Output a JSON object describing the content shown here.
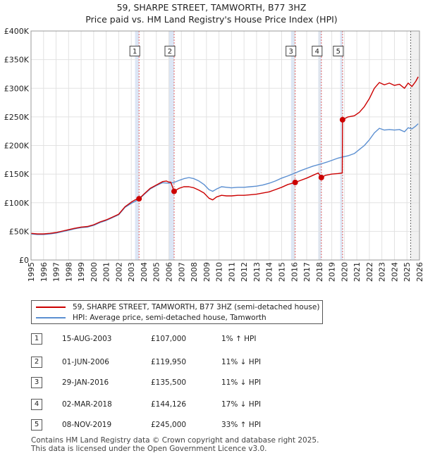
{
  "chart_data": {
    "type": "line",
    "title": "59, SHARPE STREET, TAMWORTH, B77 3HZ",
    "subtitle": "Price paid vs. HM Land Registry's House Price Index (HPI)",
    "xlim": [
      1995,
      2026
    ],
    "ylim": [
      0,
      400000
    ],
    "y_ticks": [
      0,
      50000,
      100000,
      150000,
      200000,
      250000,
      300000,
      350000,
      400000
    ],
    "y_tick_labels": [
      "£0",
      "£50K",
      "£100K",
      "£150K",
      "£200K",
      "£250K",
      "£300K",
      "£350K",
      "£400K"
    ],
    "x_ticks": [
      1995,
      1996,
      1997,
      1998,
      1999,
      2000,
      2001,
      2002,
      2003,
      2004,
      2005,
      2006,
      2007,
      2008,
      2009,
      2010,
      2011,
      2012,
      2013,
      2014,
      2015,
      2016,
      2017,
      2018,
      2019,
      2020,
      2021,
      2022,
      2023,
      2024,
      2025,
      2026
    ],
    "x_tick_labels": [
      "1995",
      "1996",
      "1997",
      "1998",
      "1999",
      "2000",
      "2001",
      "2002",
      "2003",
      "2004",
      "2005",
      "2006",
      "2007",
      "2008",
      "2009",
      "2010",
      "2011",
      "2012",
      "2013",
      "2014",
      "2015",
      "2016",
      "2017",
      "2018",
      "2019",
      "2020",
      "2021",
      "2022",
      "2023",
      "2024",
      "2025",
      "2026"
    ],
    "grid": true,
    "colors": {
      "property": "#cc0000",
      "hpi": "#5b8fd1",
      "shade": "#dce6f5",
      "grid": "#e2e2e2",
      "vline": "#e06060",
      "forecast": "#aaaaaa"
    },
    "shaded_bands": [
      [
        2003.3,
        2003.62
      ],
      [
        2006.0,
        2006.42
      ],
      [
        2015.75,
        2016.08
      ],
      [
        2017.92,
        2018.17
      ],
      [
        2019.67,
        2019.86
      ]
    ],
    "forecast_start": 2025.3,
    "series": [
      {
        "name": "59, SHARPE STREET, TAMWORTH, B77 3HZ (semi-detached house)",
        "color": "#cc0000",
        "points": [
          [
            1995.0,
            46500
          ],
          [
            1995.5,
            45500
          ],
          [
            1996.0,
            45500
          ],
          [
            1996.5,
            46500
          ],
          [
            1997.0,
            48000
          ],
          [
            1997.5,
            50500
          ],
          [
            1998.0,
            53000
          ],
          [
            1998.5,
            55500
          ],
          [
            1999.0,
            57500
          ],
          [
            1999.5,
            58500
          ],
          [
            2000.0,
            61500
          ],
          [
            2000.5,
            66500
          ],
          [
            2001.0,
            70000
          ],
          [
            2001.5,
            75000
          ],
          [
            2002.0,
            80000
          ],
          [
            2002.5,
            93000
          ],
          [
            2003.0,
            101000
          ],
          [
            2003.3,
            105000
          ],
          [
            2003.62,
            107000
          ],
          [
            2004.0,
            115000
          ],
          [
            2004.5,
            125000
          ],
          [
            2005.0,
            131000
          ],
          [
            2005.5,
            137000
          ],
          [
            2005.8,
            138000
          ],
          [
            2006.0,
            136000
          ],
          [
            2006.15,
            136000
          ],
          [
            2006.42,
            119950
          ],
          [
            2006.8,
            125000
          ],
          [
            2007.2,
            128000
          ],
          [
            2007.6,
            128000
          ],
          [
            2008.0,
            126000
          ],
          [
            2008.4,
            122000
          ],
          [
            2008.8,
            117000
          ],
          [
            2009.2,
            108000
          ],
          [
            2009.5,
            105000
          ],
          [
            2009.8,
            110000
          ],
          [
            2010.2,
            113000
          ],
          [
            2010.6,
            112000
          ],
          [
            2011.0,
            112000
          ],
          [
            2011.5,
            113000
          ],
          [
            2012.0,
            113000
          ],
          [
            2012.5,
            114000
          ],
          [
            2013.0,
            115000
          ],
          [
            2013.5,
            117000
          ],
          [
            2014.0,
            119000
          ],
          [
            2014.5,
            123000
          ],
          [
            2015.0,
            127000
          ],
          [
            2015.5,
            132000
          ],
          [
            2016.08,
            135500
          ],
          [
            2016.5,
            139000
          ],
          [
            2017.0,
            143000
          ],
          [
            2017.5,
            148000
          ],
          [
            2017.92,
            152000
          ],
          [
            2018.17,
            144126
          ],
          [
            2018.5,
            148000
          ],
          [
            2019.0,
            150000
          ],
          [
            2019.5,
            151000
          ],
          [
            2019.84,
            152000
          ],
          [
            2019.86,
            245000
          ],
          [
            2020.3,
            250000
          ],
          [
            2020.8,
            252000
          ],
          [
            2021.2,
            258000
          ],
          [
            2021.6,
            268000
          ],
          [
            2022.0,
            282000
          ],
          [
            2022.4,
            300000
          ],
          [
            2022.8,
            310000
          ],
          [
            2023.2,
            306000
          ],
          [
            2023.6,
            309000
          ],
          [
            2024.0,
            305000
          ],
          [
            2024.4,
            307000
          ],
          [
            2024.8,
            300000
          ],
          [
            2025.1,
            309000
          ],
          [
            2025.4,
            303000
          ],
          [
            2025.7,
            312000
          ],
          [
            2025.9,
            320000
          ]
        ]
      },
      {
        "name": "HPI: Average price, semi-detached house, Tamworth",
        "color": "#5b8fd1",
        "points": [
          [
            1995.0,
            45500
          ],
          [
            1995.5,
            44500
          ],
          [
            1996.0,
            44500
          ],
          [
            1996.5,
            45500
          ],
          [
            1997.0,
            47000
          ],
          [
            1997.5,
            49500
          ],
          [
            1998.0,
            52000
          ],
          [
            1998.5,
            54500
          ],
          [
            1999.0,
            56500
          ],
          [
            1999.5,
            57500
          ],
          [
            2000.0,
            60500
          ],
          [
            2000.5,
            65500
          ],
          [
            2001.0,
            69000
          ],
          [
            2001.5,
            74000
          ],
          [
            2002.0,
            79000
          ],
          [
            2002.5,
            92000
          ],
          [
            2003.0,
            99000
          ],
          [
            2003.62,
            106000
          ],
          [
            2004.0,
            114000
          ],
          [
            2004.5,
            124000
          ],
          [
            2005.0,
            130000
          ],
          [
            2005.5,
            135000
          ],
          [
            2006.0,
            134000
          ],
          [
            2006.42,
            135500
          ],
          [
            2006.8,
            139000
          ],
          [
            2007.2,
            142000
          ],
          [
            2007.6,
            144000
          ],
          [
            2008.0,
            142000
          ],
          [
            2008.4,
            138000
          ],
          [
            2008.8,
            132000
          ],
          [
            2009.2,
            123000
          ],
          [
            2009.5,
            120000
          ],
          [
            2009.8,
            124000
          ],
          [
            2010.2,
            128000
          ],
          [
            2010.6,
            127000
          ],
          [
            2011.0,
            126000
          ],
          [
            2011.5,
            127000
          ],
          [
            2012.0,
            127000
          ],
          [
            2012.5,
            128000
          ],
          [
            2013.0,
            129000
          ],
          [
            2013.5,
            131000
          ],
          [
            2014.0,
            134000
          ],
          [
            2014.5,
            138000
          ],
          [
            2015.0,
            143000
          ],
          [
            2015.5,
            147000
          ],
          [
            2016.08,
            152000
          ],
          [
            2016.5,
            156000
          ],
          [
            2017.0,
            160000
          ],
          [
            2017.5,
            164000
          ],
          [
            2018.17,
            168000
          ],
          [
            2018.6,
            171000
          ],
          [
            2019.0,
            174000
          ],
          [
            2019.5,
            178000
          ],
          [
            2019.86,
            180000
          ],
          [
            2020.3,
            182000
          ],
          [
            2020.8,
            186000
          ],
          [
            2021.2,
            193000
          ],
          [
            2021.6,
            200000
          ],
          [
            2022.0,
            210000
          ],
          [
            2022.4,
            222000
          ],
          [
            2022.8,
            230000
          ],
          [
            2023.2,
            227000
          ],
          [
            2023.6,
            228000
          ],
          [
            2024.0,
            227000
          ],
          [
            2024.4,
            228000
          ],
          [
            2024.8,
            224000
          ],
          [
            2025.1,
            231000
          ],
          [
            2025.4,
            229000
          ],
          [
            2025.7,
            234000
          ],
          [
            2025.9,
            238000
          ]
        ]
      }
    ],
    "sales": [
      {
        "id": "1",
        "x": 2003.62,
        "value": 107000,
        "label_value": 365000
      },
      {
        "id": "2",
        "x": 2006.42,
        "value": 119950,
        "label_value": 365000
      },
      {
        "id": "3",
        "x": 2016.08,
        "value": 135500,
        "label_value": 365000
      },
      {
        "id": "4",
        "x": 2018.17,
        "value": 144126,
        "label_value": 365000
      },
      {
        "id": "5",
        "x": 2019.86,
        "value": 245000,
        "label_value": 365000
      }
    ]
  },
  "legend": {
    "property_label": "59, SHARPE STREET, TAMWORTH, B77 3HZ (semi-detached house)",
    "hpi_label": "HPI: Average price, semi-detached house, Tamworth"
  },
  "table": [
    {
      "num": "1",
      "date": "15-AUG-2003",
      "price": "£107,000",
      "hpi": "1% ↑ HPI"
    },
    {
      "num": "2",
      "date": "01-JUN-2006",
      "price": "£119,950",
      "hpi": "11% ↓ HPI"
    },
    {
      "num": "3",
      "date": "29-JAN-2016",
      "price": "£135,500",
      "hpi": "11% ↓ HPI"
    },
    {
      "num": "4",
      "date": "02-MAR-2018",
      "price": "£144,126",
      "hpi": "17% ↓ HPI"
    },
    {
      "num": "5",
      "date": "08-NOV-2019",
      "price": "£245,000",
      "hpi": "33% ↑ HPI"
    }
  ],
  "footer": {
    "line1": "Contains HM Land Registry data © Crown copyright and database right 2025.",
    "line2": "This data is licensed under the Open Government Licence v3.0."
  }
}
